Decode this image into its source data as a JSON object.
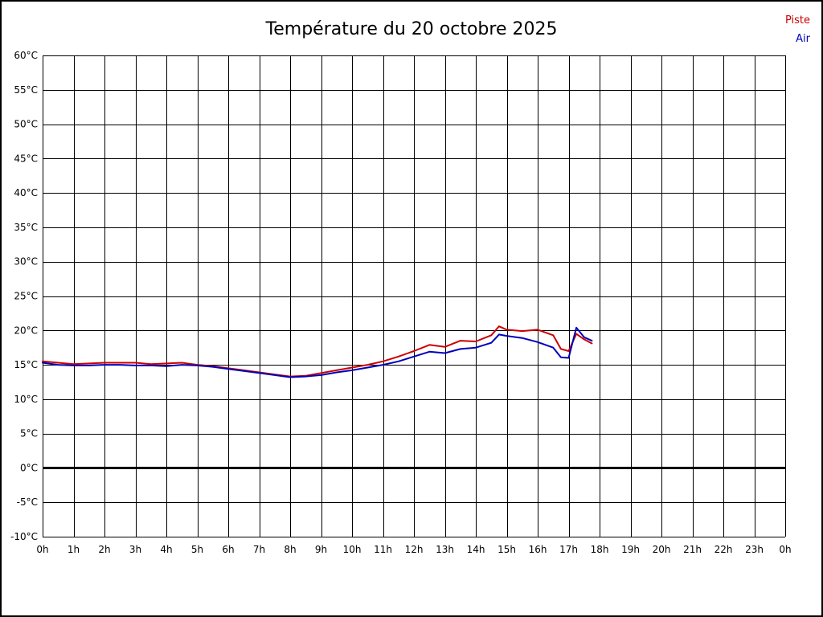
{
  "page": {
    "title": "Température du 20 octobre 2025"
  },
  "legend": {
    "piste_label": "Piste",
    "air_label": "Air"
  },
  "chart_data": {
    "type": "line",
    "title": "Température du 20 octobre 2025",
    "xlabel": "",
    "ylabel": "",
    "xlim": [
      0,
      24
    ],
    "ylim": [
      -10,
      60
    ],
    "y_tick_step": 5,
    "x_tick_step": 1,
    "grid": true,
    "grid_color": "#000000",
    "zero_line_value": 0,
    "zero_line_color": "#000000",
    "x_tick_labels": [
      "0h",
      "1h",
      "2h",
      "3h",
      "4h",
      "5h",
      "6h",
      "7h",
      "8h",
      "9h",
      "10h",
      "11h",
      "12h",
      "13h",
      "14h",
      "15h",
      "16h",
      "17h",
      "18h",
      "19h",
      "20h",
      "21h",
      "22h",
      "23h",
      "0h"
    ],
    "y_tick_labels": [
      "60°C",
      "55°C",
      "50°C",
      "45°C",
      "40°C",
      "35°C",
      "30°C",
      "25°C",
      "20°C",
      "15°C",
      "10°C",
      "5°C",
      "0°C",
      "-5°C",
      "-10°C"
    ],
    "y_tick_values": [
      60,
      55,
      50,
      45,
      40,
      35,
      30,
      25,
      20,
      15,
      10,
      5,
      0,
      -5,
      -10
    ],
    "legend_position": "top-right",
    "series": [
      {
        "name": "Piste",
        "color": "#cc0000",
        "points": [
          [
            0,
            15.5
          ],
          [
            0.5,
            15.3
          ],
          [
            1,
            15.1
          ],
          [
            1.5,
            15.2
          ],
          [
            2,
            15.3
          ],
          [
            2.5,
            15.3
          ],
          [
            3,
            15.3
          ],
          [
            3.5,
            15.1
          ],
          [
            4,
            15.2
          ],
          [
            4.5,
            15.3
          ],
          [
            5,
            15.0
          ],
          [
            5.5,
            14.8
          ],
          [
            6,
            14.5
          ],
          [
            6.5,
            14.2
          ],
          [
            7,
            13.9
          ],
          [
            7.5,
            13.6
          ],
          [
            8,
            13.3
          ],
          [
            8.5,
            13.4
          ],
          [
            9,
            13.8
          ],
          [
            9.5,
            14.2
          ],
          [
            10,
            14.6
          ],
          [
            10.5,
            15.0
          ],
          [
            11,
            15.5
          ],
          [
            11.5,
            16.2
          ],
          [
            12,
            17.0
          ],
          [
            12.5,
            17.9
          ],
          [
            13,
            17.6
          ],
          [
            13.5,
            18.5
          ],
          [
            14,
            18.4
          ],
          [
            14.5,
            19.3
          ],
          [
            14.75,
            20.6
          ],
          [
            15,
            20.1
          ],
          [
            15.5,
            19.9
          ],
          [
            16,
            20.1
          ],
          [
            16.5,
            19.3
          ],
          [
            16.75,
            17.3
          ],
          [
            17,
            17.0
          ],
          [
            17.25,
            19.5
          ],
          [
            17.5,
            18.7
          ],
          [
            17.75,
            18.1
          ]
        ]
      },
      {
        "name": "Air",
        "color": "#0000bb",
        "points": [
          [
            0,
            15.3
          ],
          [
            0.5,
            15.0
          ],
          [
            1,
            14.9
          ],
          [
            1.5,
            14.9
          ],
          [
            2,
            15.0
          ],
          [
            2.5,
            15.0
          ],
          [
            3,
            14.9
          ],
          [
            3.5,
            14.9
          ],
          [
            4,
            14.8
          ],
          [
            4.5,
            15.0
          ],
          [
            5,
            14.9
          ],
          [
            5.5,
            14.7
          ],
          [
            6,
            14.4
          ],
          [
            6.5,
            14.1
          ],
          [
            7,
            13.8
          ],
          [
            7.5,
            13.5
          ],
          [
            8,
            13.2
          ],
          [
            8.5,
            13.3
          ],
          [
            9,
            13.5
          ],
          [
            9.5,
            13.9
          ],
          [
            10,
            14.2
          ],
          [
            10.5,
            14.6
          ],
          [
            11,
            15.0
          ],
          [
            11.5,
            15.5
          ],
          [
            12,
            16.2
          ],
          [
            12.5,
            16.9
          ],
          [
            13,
            16.7
          ],
          [
            13.5,
            17.3
          ],
          [
            14,
            17.5
          ],
          [
            14.5,
            18.2
          ],
          [
            14.75,
            19.4
          ],
          [
            15,
            19.2
          ],
          [
            15.5,
            18.9
          ],
          [
            16,
            18.3
          ],
          [
            16.5,
            17.5
          ],
          [
            16.75,
            16.1
          ],
          [
            17,
            16.0
          ],
          [
            17.25,
            20.4
          ],
          [
            17.5,
            19.0
          ],
          [
            17.75,
            18.5
          ]
        ]
      }
    ]
  }
}
